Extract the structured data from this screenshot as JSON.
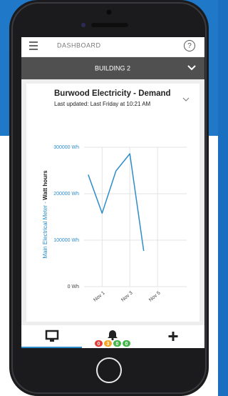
{
  "header": {
    "title": "DASHBOARD",
    "help": "?"
  },
  "building_bar": {
    "label": "BUILDING 2"
  },
  "card": {
    "title": "Burwood Electricity - Demand",
    "subtitle": "Last updated: Last Friday at 10:21 AM"
  },
  "chart_data": {
    "type": "line",
    "y_label": [
      "Main Electrical Meter - ",
      "Watt hours"
    ],
    "x": [
      0,
      1,
      2,
      3,
      4
    ],
    "series": [
      {
        "color": "#2e8cc8",
        "values": [
          241000,
          158000,
          249000,
          286000,
          77000
        ]
      }
    ],
    "xlim": [
      -0.3,
      7.1
    ],
    "xticks": [
      {
        "value": 1,
        "label": "Nov 1"
      },
      {
        "value": 3,
        "label": "Nov 3"
      },
      {
        "value": 5,
        "label": "Nov 5"
      }
    ],
    "ylim": [
      0,
      300000
    ],
    "yticks": [
      {
        "value": 0,
        "label": "0 Wh"
      },
      {
        "value": 100000,
        "label": "100000 Wh"
      },
      {
        "value": 200000,
        "label": "200000 Wh"
      },
      {
        "value": 300000,
        "label": "300000 Wh"
      }
    ],
    "grid": true
  },
  "nav": {
    "badges": [
      {
        "text": "0",
        "color": "#e53935"
      },
      {
        "text": "3",
        "color": "#f5a623"
      },
      {
        "text": "0",
        "color": "#43b649"
      },
      {
        "text": "0",
        "color": "#43b649"
      }
    ]
  }
}
